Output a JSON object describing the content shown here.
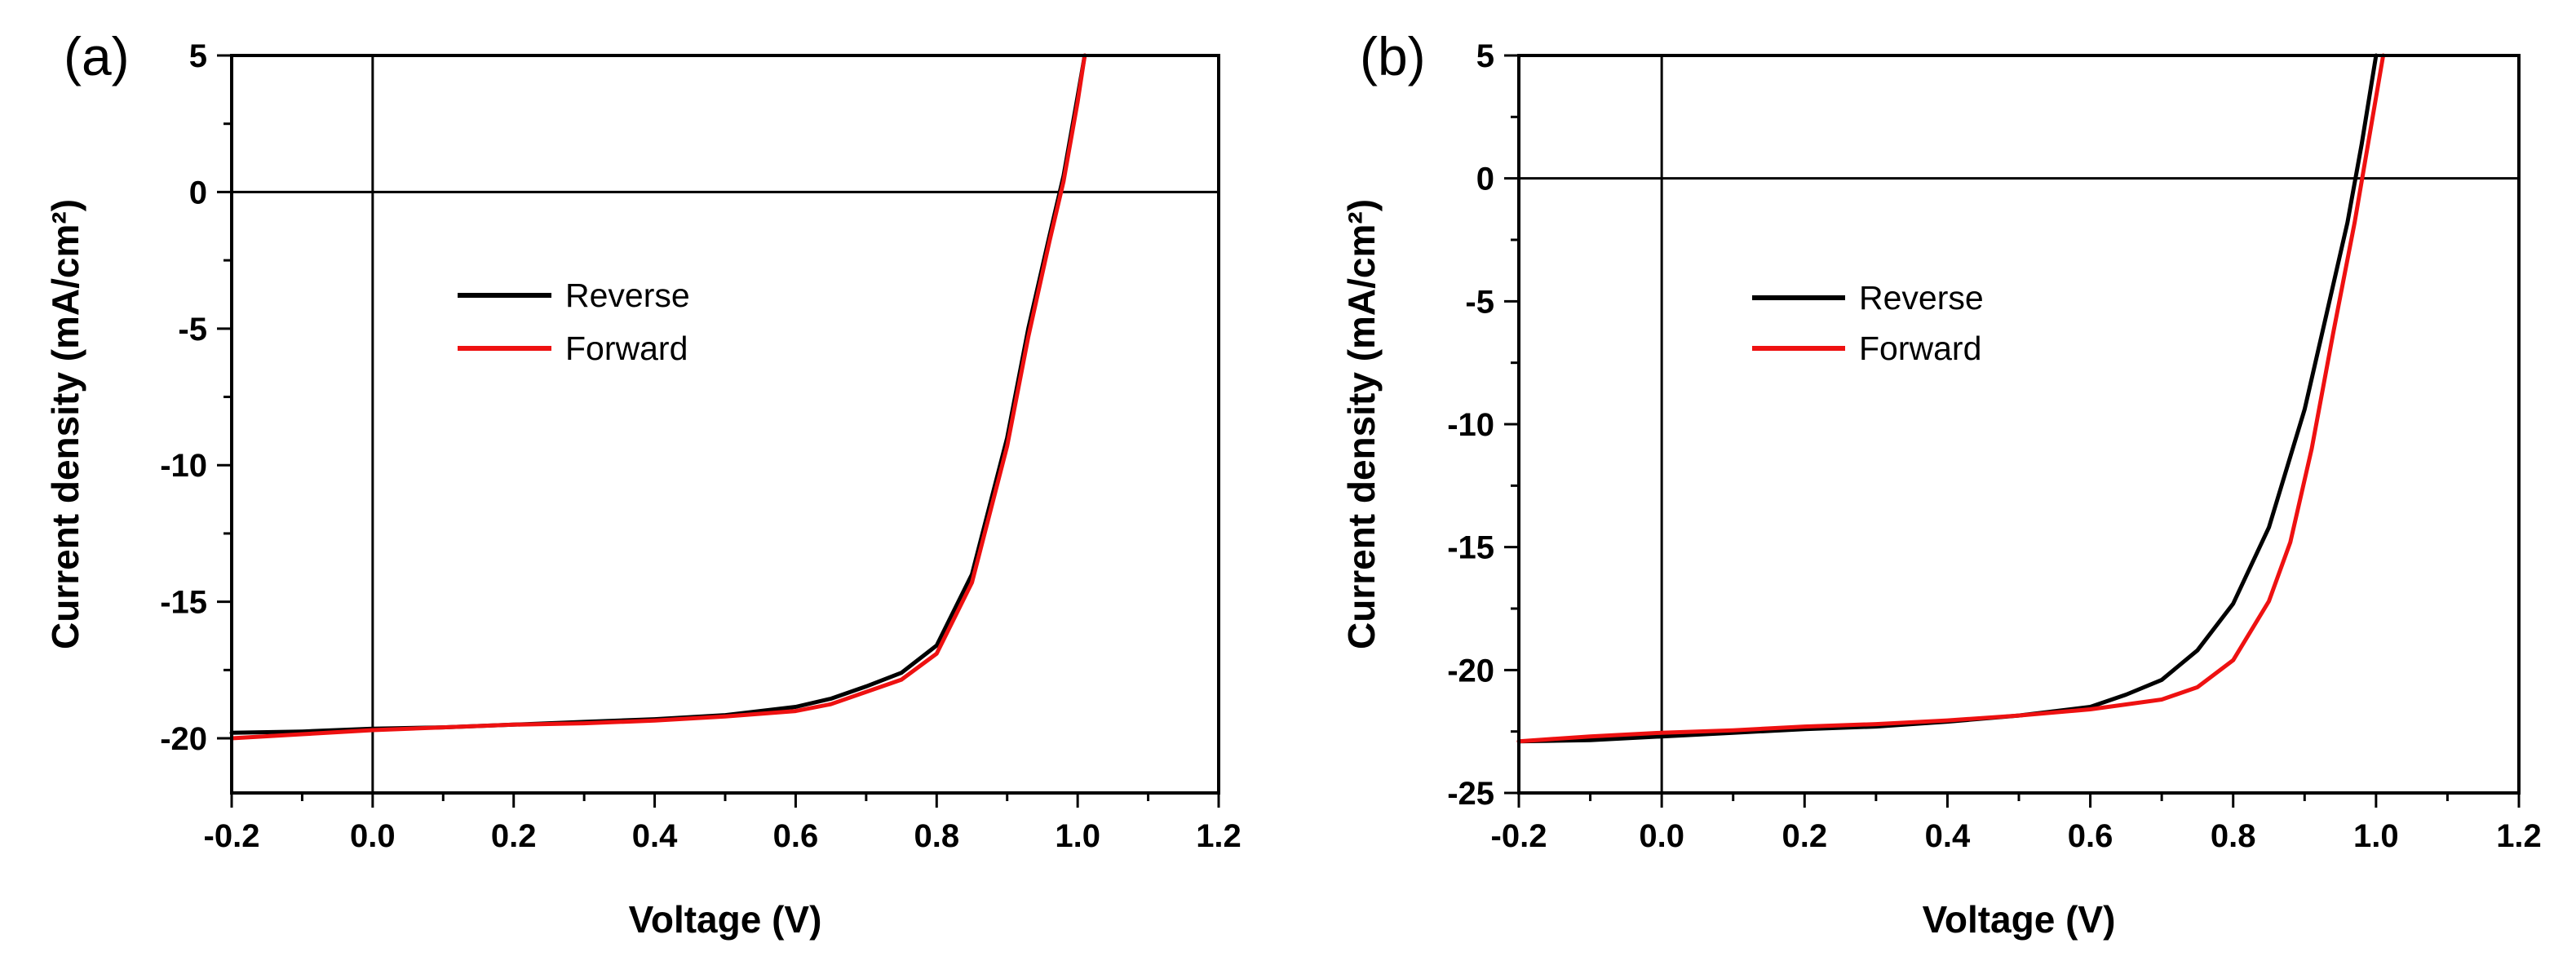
{
  "colors": {
    "reverse": "#000000",
    "forward": "#ee1111"
  },
  "chart_data": [
    {
      "type": "line",
      "panel_label": "(a)",
      "xlabel": "Voltage (V)",
      "ylabel": "Current density (mA/cm²)",
      "xlim": [
        -0.2,
        1.2
      ],
      "ylim": [
        -22,
        5
      ],
      "xticks": [
        -0.2,
        0.0,
        0.2,
        0.4,
        0.6,
        0.8,
        1.0,
        1.2
      ],
      "xtick_labels": [
        "-0.2",
        "0.0",
        "0.2",
        "0.4",
        "0.6",
        "0.8",
        "1.0",
        "1.2"
      ],
      "yticks": [
        5,
        0,
        -5,
        -10,
        -15,
        -20
      ],
      "ytick_labels": [
        "5",
        "0",
        "-5",
        "-10",
        "-15",
        "-20"
      ],
      "reference_lines": {
        "x": 0,
        "y": 0
      },
      "legend": [
        "Reverse",
        "Forward"
      ],
      "series": [
        {
          "name": "Reverse",
          "color": "#000000",
          "x": [
            -0.2,
            -0.1,
            0.0,
            0.1,
            0.2,
            0.3,
            0.4,
            0.5,
            0.6,
            0.65,
            0.7,
            0.75,
            0.8,
            0.85,
            0.9,
            0.93,
            0.96,
            0.98,
            1.0,
            1.01
          ],
          "y": [
            -19.8,
            -19.75,
            -19.65,
            -19.6,
            -19.5,
            -19.4,
            -19.3,
            -19.15,
            -18.85,
            -18.55,
            -18.1,
            -17.6,
            -16.6,
            -14.0,
            -9.0,
            -5.0,
            -1.6,
            0.6,
            3.5,
            5.0
          ]
        },
        {
          "name": "Forward",
          "color": "#ee1111",
          "x": [
            -0.2,
            -0.1,
            0.0,
            0.1,
            0.2,
            0.3,
            0.4,
            0.5,
            0.6,
            0.65,
            0.7,
            0.75,
            0.8,
            0.85,
            0.9,
            0.93,
            0.96,
            0.98,
            1.0,
            1.01
          ],
          "y": [
            -20.0,
            -19.85,
            -19.7,
            -19.6,
            -19.5,
            -19.45,
            -19.35,
            -19.2,
            -19.0,
            -18.75,
            -18.3,
            -17.85,
            -16.9,
            -14.3,
            -9.3,
            -5.3,
            -1.8,
            0.4,
            3.3,
            5.0
          ]
        }
      ]
    },
    {
      "type": "line",
      "panel_label": "(b)",
      "xlabel": "Voltage (V)",
      "ylabel": "Current density (mA/cm²)",
      "xlim": [
        -0.2,
        1.2
      ],
      "ylim": [
        -25,
        5
      ],
      "xticks": [
        -0.2,
        0.0,
        0.2,
        0.4,
        0.6,
        0.8,
        1.0,
        1.2
      ],
      "xtick_labels": [
        "-0.2",
        "0.0",
        "0.2",
        "0.4",
        "0.6",
        "0.8",
        "1.0",
        "1.2"
      ],
      "yticks": [
        5,
        0,
        -5,
        -10,
        -15,
        -20,
        -25
      ],
      "ytick_labels": [
        "5",
        "0",
        "-5",
        "-10",
        "-15",
        "-20",
        "-25"
      ],
      "reference_lines": {
        "x": 0,
        "y": 0
      },
      "legend": [
        "Reverse",
        "Forward"
      ],
      "series": [
        {
          "name": "Reverse",
          "color": "#000000",
          "x": [
            -0.2,
            -0.1,
            0.0,
            0.1,
            0.2,
            0.3,
            0.4,
            0.5,
            0.6,
            0.65,
            0.7,
            0.75,
            0.8,
            0.85,
            0.9,
            0.93,
            0.96,
            0.98,
            1.0
          ],
          "y": [
            -22.9,
            -22.85,
            -22.7,
            -22.55,
            -22.4,
            -22.3,
            -22.1,
            -21.85,
            -21.5,
            -21.0,
            -20.4,
            -19.2,
            -17.3,
            -14.2,
            -9.4,
            -5.6,
            -1.8,
            1.4,
            5.0
          ]
        },
        {
          "name": "Forward",
          "color": "#ee1111",
          "x": [
            -0.2,
            -0.1,
            0.0,
            0.1,
            0.2,
            0.3,
            0.4,
            0.5,
            0.6,
            0.65,
            0.7,
            0.75,
            0.8,
            0.85,
            0.88,
            0.91,
            0.94,
            0.97,
            0.99,
            1.01
          ],
          "y": [
            -22.9,
            -22.7,
            -22.55,
            -22.45,
            -22.3,
            -22.2,
            -22.05,
            -21.85,
            -21.6,
            -21.4,
            -21.2,
            -20.7,
            -19.6,
            -17.2,
            -14.8,
            -11.0,
            -6.3,
            -1.8,
            1.6,
            5.0
          ]
        }
      ]
    }
  ]
}
